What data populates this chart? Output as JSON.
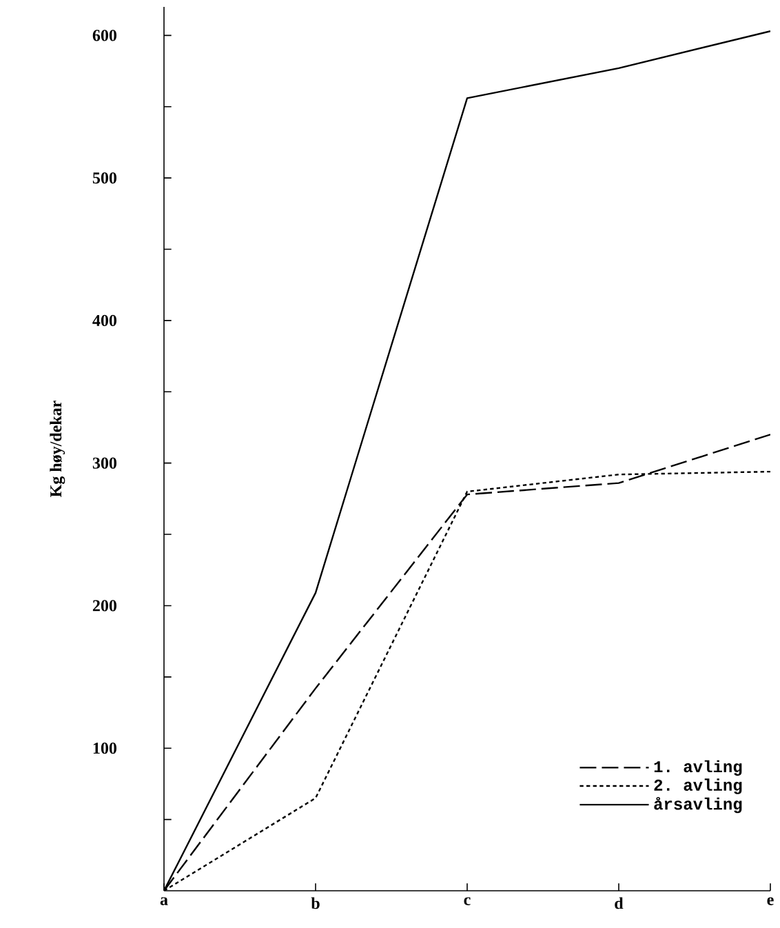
{
  "chart_data": {
    "type": "line",
    "ylabel": "Kg høy/dekar",
    "categories": [
      "a",
      "b",
      "c",
      "d",
      "e"
    ],
    "series": [
      {
        "name": "1. avling",
        "color": "#000000",
        "line_style": "dashed",
        "values": [
          0,
          142,
          278,
          286,
          320
        ]
      },
      {
        "name": "2. avling",
        "color": "#000000",
        "line_style": "dotted",
        "values": [
          0,
          65,
          280,
          292,
          294
        ]
      },
      {
        "name": "årsavling",
        "color": "#000000",
        "line_style": "solid",
        "values": [
          0,
          209,
          556,
          577,
          603
        ]
      }
    ],
    "ylim": [
      0,
      620
    ],
    "yticks": [
      {
        "value": 50,
        "label": null
      },
      100,
      {
        "value": 150,
        "label": null
      },
      200,
      {
        "value": 250,
        "label": null
      },
      300,
      {
        "value": 350,
        "label": null
      },
      400,
      {
        "value": 450,
        "label": null
      },
      500,
      {
        "value": 550,
        "label": null
      },
      600
    ],
    "legend": "bottom right",
    "grid": false,
    "marker": "none"
  }
}
